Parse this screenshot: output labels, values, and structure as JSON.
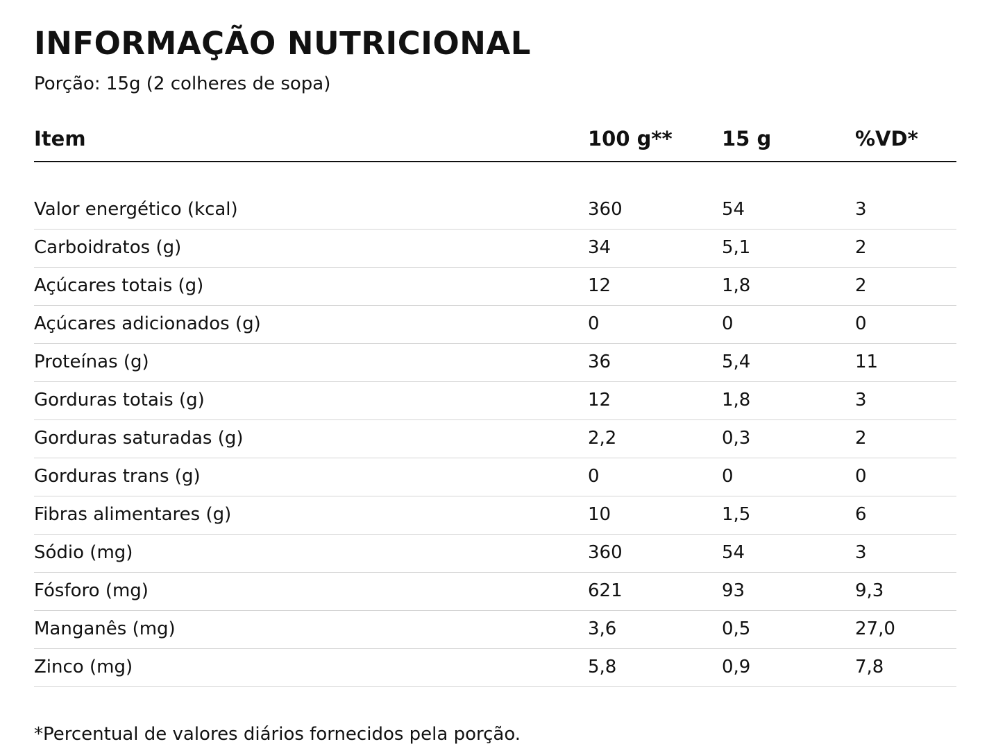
{
  "title": "INFORMAÇÃO NUTRICIONAL",
  "portion": "Porção: 15g (2 colheres de sopa)",
  "table": {
    "headers": [
      "Item",
      "100 g**",
      "15 g",
      "%VD*"
    ],
    "rows": [
      [
        "Valor energético (kcal)",
        "360",
        "54",
        "3"
      ],
      [
        "Carboidratos (g)",
        "34",
        "5,1",
        "2"
      ],
      [
        "Açúcares totais (g)",
        "12",
        "1,8",
        "2"
      ],
      [
        "Açúcares adicionados (g)",
        "0",
        "0",
        "0"
      ],
      [
        "Proteínas (g)",
        "36",
        "5,4",
        "11"
      ],
      [
        "Gorduras totais (g)",
        "12",
        "1,8",
        "3"
      ],
      [
        "Gorduras saturadas (g)",
        "2,2",
        "0,3",
        "2"
      ],
      [
        "Gorduras trans (g)",
        "0",
        "0",
        "0"
      ],
      [
        "Fibras alimentares (g)",
        "10",
        "1,5",
        "6"
      ],
      [
        "Sódio (mg)",
        "360",
        "54",
        "3"
      ],
      [
        "Fósforo (mg)",
        "621",
        "93",
        "9,3"
      ],
      [
        "Manganês (mg)",
        "3,6",
        "0,5",
        "27,0"
      ],
      [
        "Zinco (mg)",
        "5,8",
        "0,9",
        "7,8"
      ]
    ]
  },
  "footnote": "*Percentual de valores diários fornecidos pela porção."
}
